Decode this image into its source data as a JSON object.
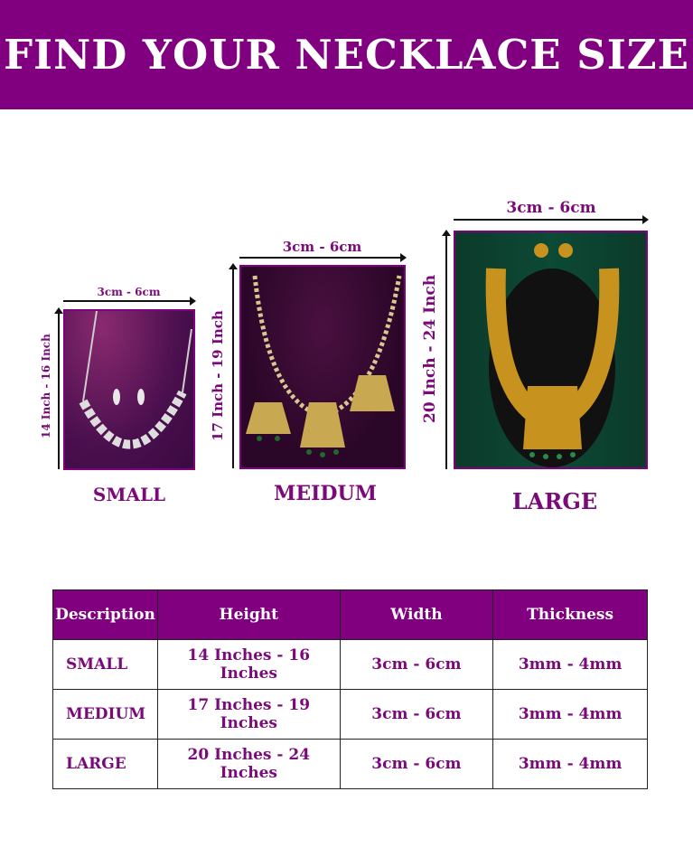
{
  "header": {
    "title": "FIND YOUR NECKLACE SIZE"
  },
  "colors": {
    "brand_purple": "#800080",
    "text_purple": "#7a0a7a"
  },
  "sizes": [
    {
      "name": "SMALL",
      "width_label": "3cm - 6cm",
      "height_label": "14 Inch - 16 Inch"
    },
    {
      "name": "MEIDUM",
      "width_label": "3cm - 6cm",
      "height_label": "17 Inch - 19 Inch"
    },
    {
      "name": "LARGE",
      "width_label": "3cm - 6cm",
      "height_label": "20 Inch - 24 Inch"
    }
  ],
  "table": {
    "headers": [
      "Description",
      "Height",
      "Width",
      "Thickness"
    ],
    "rows": [
      [
        "SMALL",
        "14 Inches - 16 Inches",
        "3cm - 6cm",
        "3mm - 4mm"
      ],
      [
        "MEDIUM",
        "17 Inches - 19 Inches",
        "3cm - 6cm",
        "3mm - 4mm"
      ],
      [
        "LARGE",
        "20 Inches - 24 Inches",
        "3cm - 6cm",
        "3mm - 4mm"
      ]
    ]
  }
}
